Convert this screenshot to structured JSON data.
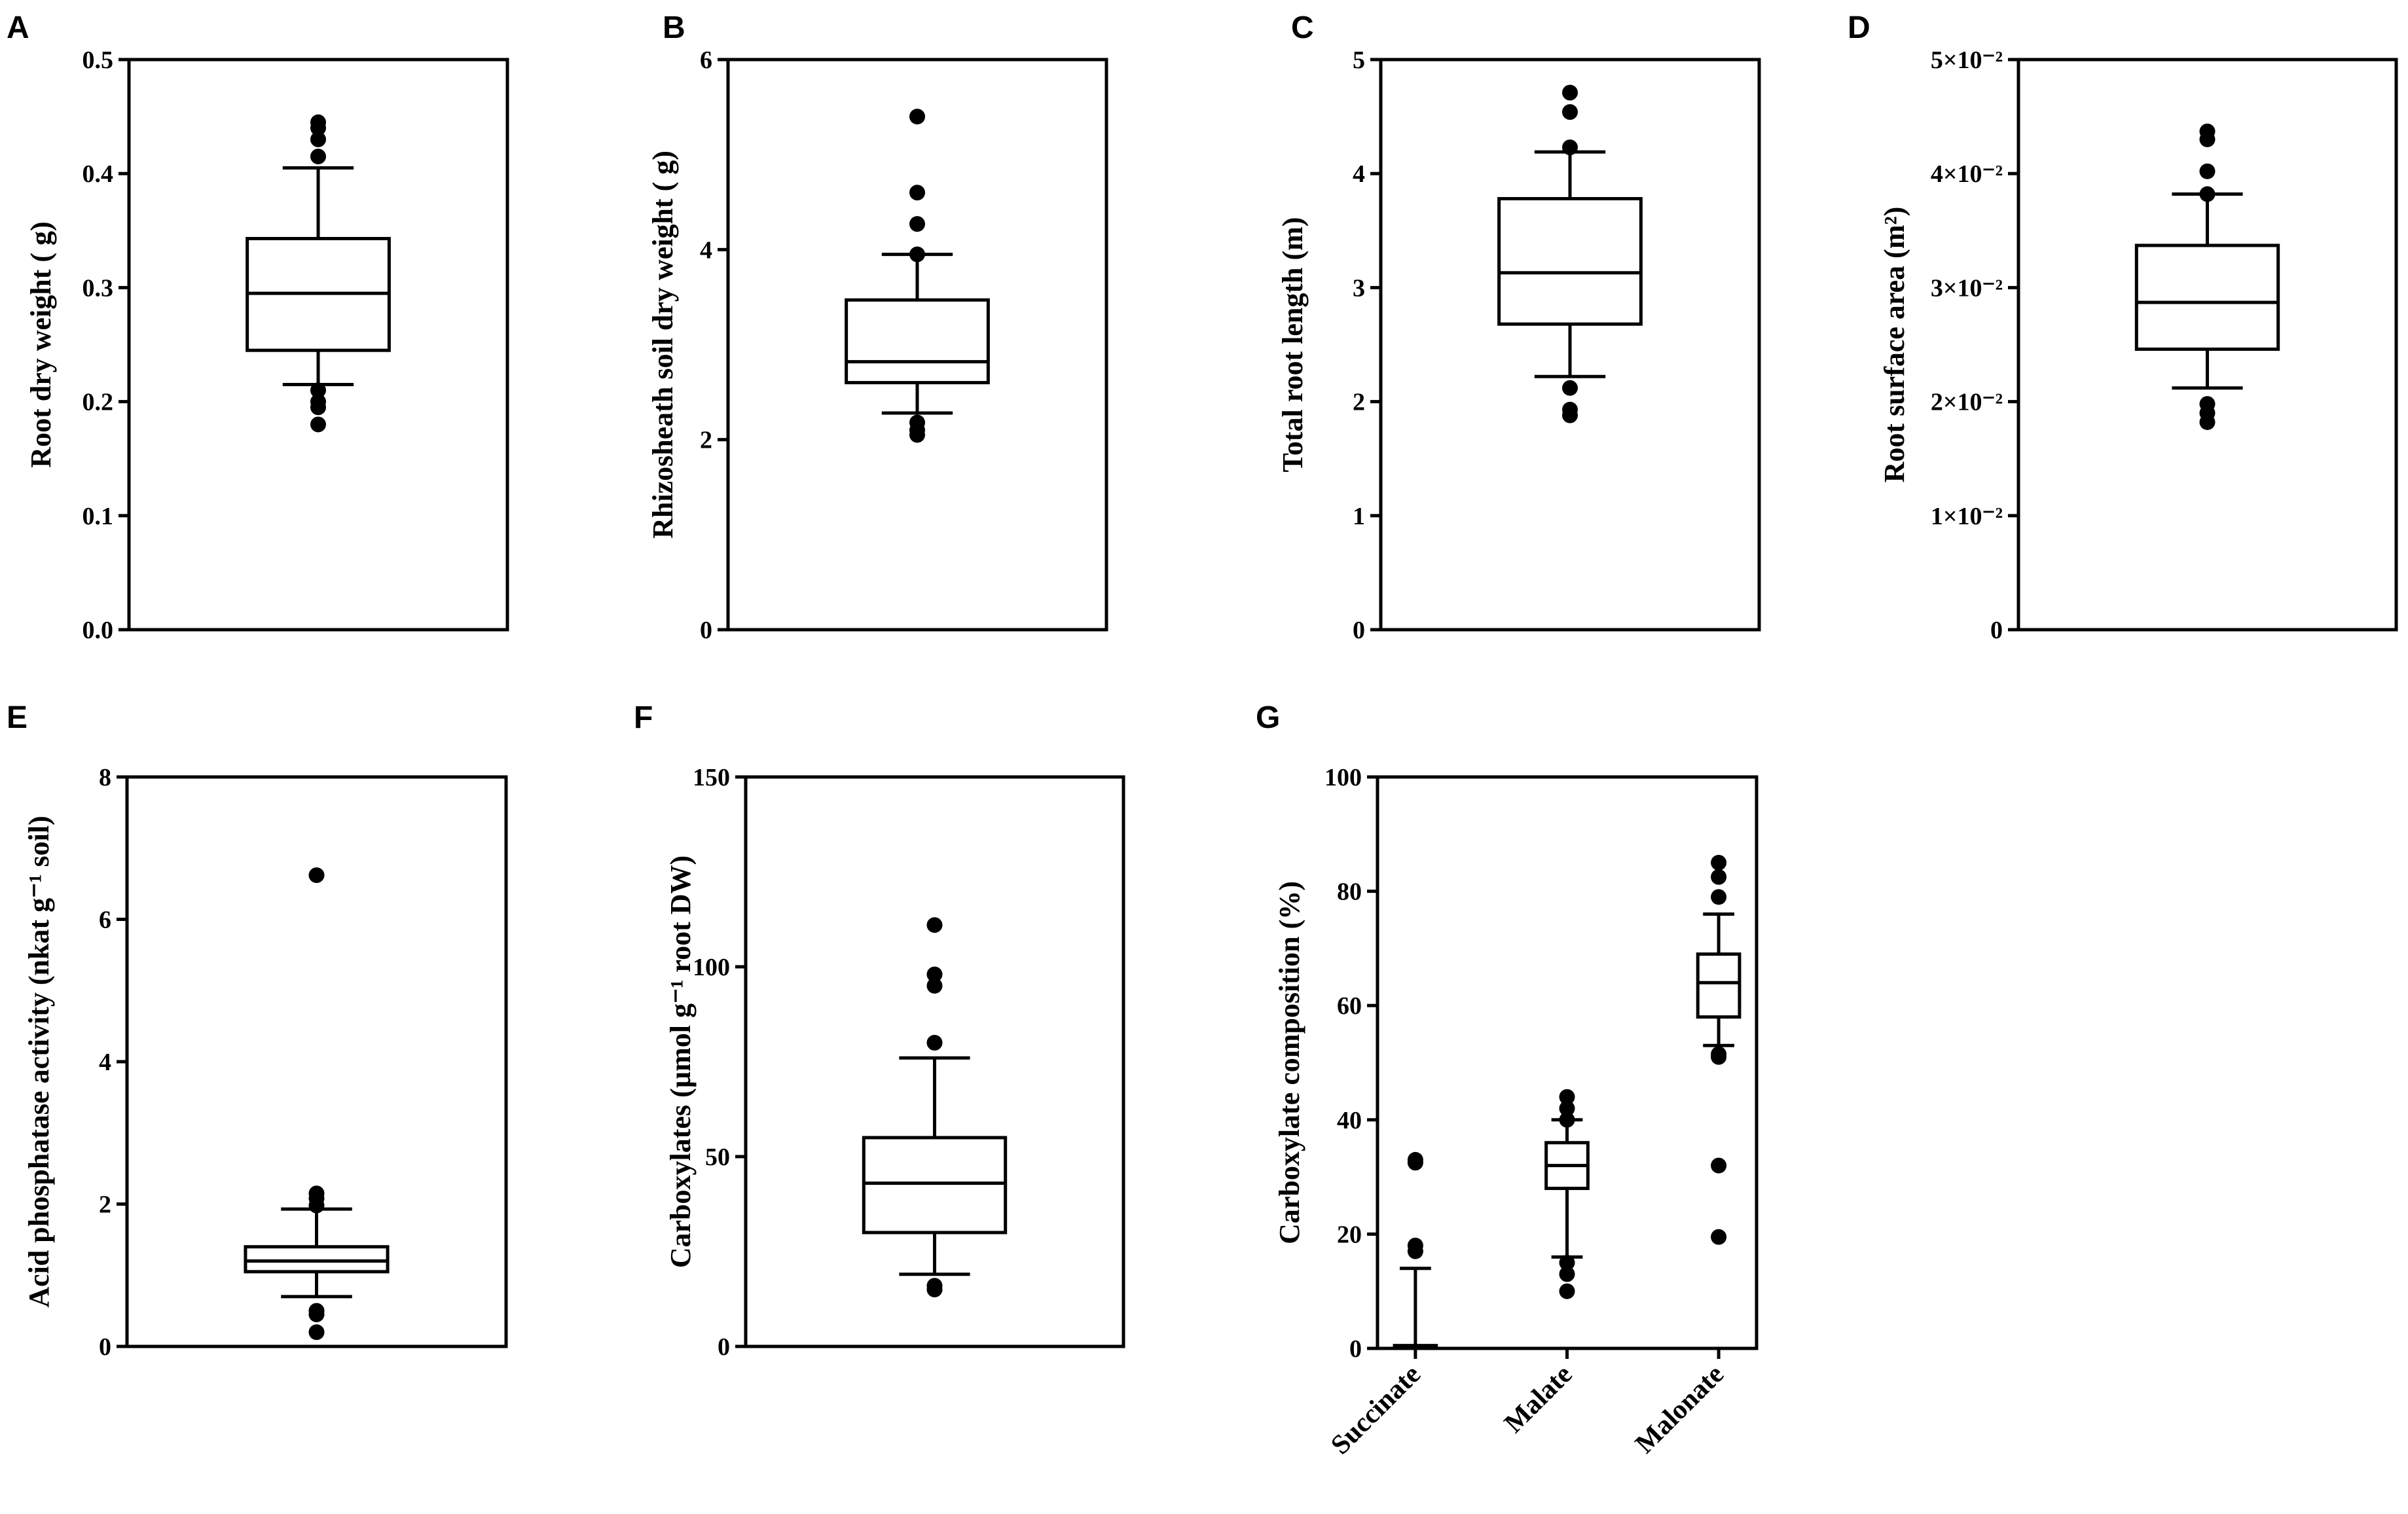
{
  "chart_data": [
    {
      "id": "A",
      "type": "box",
      "panel_label": "A",
      "ylabel": "Root dry weight ( g)",
      "ylim": [
        0,
        0.5
      ],
      "yticks": [
        0.0,
        0.1,
        0.2,
        0.3,
        0.4,
        0.5
      ],
      "ytick_labels": [
        "0.0",
        "0.1",
        "0.2",
        "0.3",
        "0.4",
        "0.5"
      ],
      "boxes": [
        {
          "category": "",
          "whisker_low": 0.215,
          "q1": 0.245,
          "median": 0.295,
          "q3": 0.343,
          "whisker_high": 0.405,
          "outliers": [
            0.445,
            0.44,
            0.43,
            0.415,
            0.21,
            0.2,
            0.195,
            0.18
          ]
        }
      ]
    },
    {
      "id": "B",
      "type": "box",
      "panel_label": "B",
      "ylabel": "Rhizosheath soil dry weight ( g)",
      "ylim": [
        0,
        6
      ],
      "yticks": [
        0,
        2,
        4,
        6
      ],
      "ytick_labels": [
        "0",
        "2",
        "4",
        "6"
      ],
      "boxes": [
        {
          "category": "",
          "whisker_low": 2.28,
          "q1": 2.6,
          "median": 2.82,
          "q3": 3.47,
          "whisker_high": 3.95,
          "outliers": [
            5.4,
            4.6,
            4.27,
            3.95,
            2.18,
            2.1,
            2.05
          ]
        }
      ]
    },
    {
      "id": "C",
      "type": "box",
      "panel_label": "C",
      "ylabel": "Total root length (m)",
      "ylim": [
        0,
        5
      ],
      "yticks": [
        0,
        1,
        2,
        3,
        4,
        5
      ],
      "ytick_labels": [
        "0",
        "1",
        "2",
        "3",
        "4",
        "5"
      ],
      "boxes": [
        {
          "category": "",
          "whisker_low": 2.22,
          "q1": 2.68,
          "median": 3.13,
          "q3": 3.78,
          "whisker_high": 4.19,
          "outliers": [
            4.71,
            4.54,
            4.23,
            2.12,
            1.93,
            1.88
          ]
        }
      ]
    },
    {
      "id": "D",
      "type": "box",
      "panel_label": "D",
      "ylabel": "Root surface area (m²)",
      "ylim": [
        0,
        0.05
      ],
      "yticks": [
        0,
        0.01,
        0.02,
        0.03,
        0.04,
        0.05
      ],
      "ytick_labels": [
        "0",
        "1×10⁻²",
        "2×10⁻²",
        "3×10⁻²",
        "4×10⁻²",
        "5×10⁻²"
      ],
      "boxes": [
        {
          "category": "",
          "whisker_low": 0.0212,
          "q1": 0.0246,
          "median": 0.0287,
          "q3": 0.0337,
          "whisker_high": 0.0382,
          "outliers": [
            0.0437,
            0.043,
            0.0402,
            0.0382,
            0.0198,
            0.019,
            0.0182
          ]
        }
      ]
    },
    {
      "id": "E",
      "type": "box",
      "panel_label": "E",
      "ylabel": "Acid phosphatase activity (nkat g⁻¹ soil)",
      "ylim": [
        0,
        8
      ],
      "yticks": [
        0,
        2,
        4,
        6,
        8
      ],
      "ytick_labels": [
        "0",
        "2",
        "4",
        "6",
        "8"
      ],
      "boxes": [
        {
          "category": "",
          "whisker_low": 0.7,
          "q1": 1.05,
          "median": 1.2,
          "q3": 1.4,
          "whisker_high": 1.93,
          "outliers": [
            6.62,
            2.15,
            2.08,
            1.98,
            0.5,
            0.45,
            0.2
          ]
        }
      ]
    },
    {
      "id": "F",
      "type": "box",
      "panel_label": "F",
      "ylabel": "Carboxylates (µmol g⁻¹ root DW)",
      "ylim": [
        0,
        150
      ],
      "yticks": [
        0,
        50,
        100,
        150
      ],
      "ytick_labels": [
        "0",
        "50",
        "100",
        "150"
      ],
      "boxes": [
        {
          "category": "",
          "whisker_low": 19,
          "q1": 30,
          "median": 43,
          "q3": 55,
          "whisker_high": 76,
          "outliers": [
            111,
            98,
            95,
            80,
            16,
            15
          ]
        }
      ]
    },
    {
      "id": "G",
      "type": "box",
      "panel_label": "G",
      "ylabel": "Carboxylate composition (%)",
      "ylim": [
        0,
        100
      ],
      "yticks": [
        0,
        20,
        40,
        60,
        80,
        100
      ],
      "ytick_labels": [
        "0",
        "20",
        "40",
        "60",
        "80",
        "100"
      ],
      "categories": [
        "Succinate",
        "Malate",
        "Malonate"
      ],
      "boxes": [
        {
          "category": "Succinate",
          "whisker_low": 0,
          "q1": 0,
          "median": 0,
          "q3": 0.5,
          "whisker_high": 14,
          "outliers": [
            33,
            32.5,
            18,
            17
          ]
        },
        {
          "category": "Malate",
          "whisker_low": 16,
          "q1": 28,
          "median": 32,
          "q3": 36,
          "whisker_high": 40,
          "outliers": [
            44,
            42,
            40,
            15,
            13,
            10
          ]
        },
        {
          "category": "Malonate",
          "whisker_low": 53,
          "q1": 58,
          "median": 64,
          "q3": 69,
          "whisker_high": 76,
          "outliers": [
            85,
            82.5,
            79,
            51.5,
            51,
            32,
            19.5
          ]
        }
      ]
    }
  ]
}
